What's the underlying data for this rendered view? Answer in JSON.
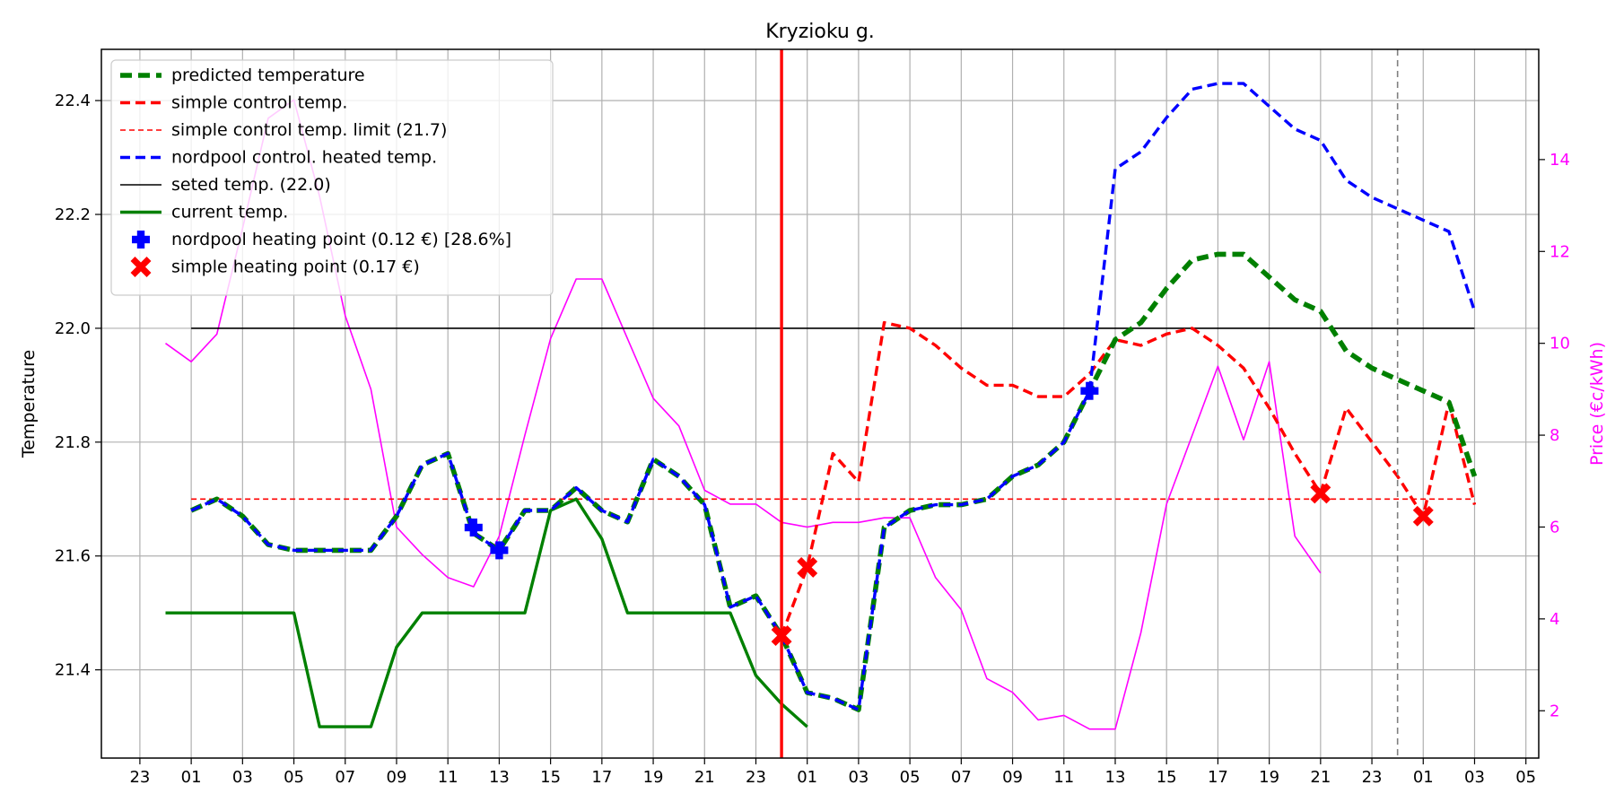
{
  "chart_data": {
    "type": "line",
    "title": "Kryzioku g.",
    "ylabel": "Temperature",
    "y2label": "Price (€c/kWh)",
    "ylim": [
      21.245,
      22.49
    ],
    "y2lim": [
      0.97,
      16.4
    ],
    "x_index_range": [
      -2.5,
      53.5
    ],
    "yticks": [
      21.4,
      21.6,
      21.8,
      22.0,
      22.2,
      22.4
    ],
    "ytick_labels": [
      "21.4",
      "21.6",
      "21.8",
      "22.0",
      "22.2",
      "22.4"
    ],
    "y2ticks": [
      2,
      4,
      6,
      8,
      10,
      12,
      14
    ],
    "y2tick_labels": [
      "2",
      "4",
      "6",
      "8",
      "10",
      "12",
      "14"
    ],
    "xtick_labels": [
      "23",
      "01",
      "03",
      "05",
      "07",
      "09",
      "11",
      "13",
      "15",
      "17",
      "19",
      "21",
      "23",
      "01",
      "03",
      "05",
      "07",
      "09",
      "11",
      "13",
      "15",
      "17",
      "19",
      "21",
      "23",
      "01",
      "03",
      "05"
    ],
    "xtick_start_index": -1,
    "xtick_step": 2,
    "grid": true,
    "legend_position": "top-left",
    "current_time_index": 24,
    "day_boundary_index": 48,
    "colors": {
      "predicted": "#008000",
      "simple": "#ff0000",
      "nordpool": "#0000ff",
      "seted": "#000000",
      "current": "#008000",
      "price": "#ff00ff",
      "now_line": "#ff0000",
      "boundary": "#808080",
      "grid": "#b0b0b0"
    },
    "legend": [
      {
        "label": "predicted temperature",
        "style": "predicted"
      },
      {
        "label": "simple control temp.",
        "style": "simple"
      },
      {
        "label": "simple control temp. limit (21.7)",
        "style": "simple_limit"
      },
      {
        "label": "nordpool control. heated temp.",
        "style": "nordpool"
      },
      {
        "label": "seted temp. (22.0)",
        "style": "seted"
      },
      {
        "label": "current temp.",
        "style": "current"
      },
      {
        "label": "nordpool heating point (0.12 €) [28.6%]",
        "style": "plus_marker"
      },
      {
        "label": "simple heating point (0.17 €)",
        "style": "x_marker"
      }
    ],
    "series": {
      "simple_limit": {
        "x_start": 1,
        "x_end": 51,
        "value": 21.7
      },
      "seted": {
        "x_start": 1,
        "x_end": 51,
        "value": 22.0
      },
      "nordpool": {
        "x_start": 1,
        "values": [
          21.68,
          21.7,
          21.67,
          21.62,
          21.61,
          21.61,
          21.61,
          21.61,
          21.67,
          21.76,
          21.78,
          21.64,
          21.61,
          21.68,
          21.68,
          21.72,
          21.68,
          21.66,
          21.77,
          21.74,
          21.69,
          21.51,
          21.53,
          21.46,
          21.36,
          21.35,
          21.33,
          21.65,
          21.68,
          21.69,
          21.69,
          21.7,
          21.74,
          21.76,
          21.8,
          21.89,
          22.28,
          22.31,
          22.37,
          22.42,
          22.43,
          22.43,
          22.39,
          22.35,
          22.33,
          22.26,
          22.23,
          22.21,
          22.19,
          22.17,
          22.03
        ]
      },
      "predicted": {
        "x_start": 1,
        "values": [
          21.68,
          21.7,
          21.67,
          21.62,
          21.61,
          21.61,
          21.61,
          21.61,
          21.67,
          21.76,
          21.78,
          21.64,
          21.61,
          21.68,
          21.68,
          21.72,
          21.68,
          21.66,
          21.77,
          21.74,
          21.69,
          21.51,
          21.53,
          21.46,
          21.36,
          21.35,
          21.33,
          21.65,
          21.68,
          21.69,
          21.69,
          21.7,
          21.74,
          21.76,
          21.8,
          21.89,
          21.98,
          22.01,
          22.07,
          22.12,
          22.13,
          22.13,
          22.09,
          22.05,
          22.03,
          21.96,
          21.93,
          21.91,
          21.89,
          21.87,
          21.74
        ]
      },
      "simple": {
        "x_start": 24,
        "values": [
          21.46,
          21.58,
          21.78,
          21.73,
          22.01,
          22.0,
          21.97,
          21.93,
          21.9,
          21.9,
          21.88,
          21.88,
          21.92,
          21.98,
          21.97,
          21.99,
          22.0,
          21.97,
          21.93,
          21.86,
          21.78,
          21.71,
          21.86,
          21.8,
          21.74,
          21.67,
          21.87,
          21.69
        ]
      },
      "current": {
        "x_start": 0,
        "values": [
          21.5,
          21.5,
          21.5,
          21.5,
          21.5,
          21.5,
          21.3,
          21.3,
          21.3,
          21.44,
          21.5,
          21.5,
          21.5,
          21.5,
          21.5,
          21.68,
          21.7,
          21.63,
          21.5,
          21.5,
          21.5,
          21.5,
          21.5,
          21.39,
          21.34,
          21.3
        ]
      },
      "price": {
        "x_start": 0,
        "values": [
          10.0,
          9.6,
          10.2,
          12.5,
          14.9,
          15.3,
          13.2,
          10.6,
          9.0,
          6.0,
          5.4,
          4.9,
          4.7,
          5.8,
          8.0,
          10.1,
          11.4,
          11.4,
          10.1,
          8.8,
          8.2,
          6.8,
          6.5,
          6.5,
          6.1,
          6.0,
          6.1,
          6.1,
          6.2,
          6.2,
          4.9,
          4.2,
          2.7,
          2.4,
          1.8,
          1.9,
          1.6,
          1.6,
          3.7,
          6.5,
          8.0,
          9.5,
          7.9,
          9.6,
          5.8,
          5.0
        ]
      },
      "nordpool_points": [
        {
          "x": 12,
          "y": 21.65
        },
        {
          "x": 13,
          "y": 21.61
        },
        {
          "x": 36,
          "y": 21.89
        }
      ],
      "simple_points": [
        {
          "x": 24,
          "y": 21.46
        },
        {
          "x": 25,
          "y": 21.58
        },
        {
          "x": 45,
          "y": 21.71
        },
        {
          "x": 49,
          "y": 21.67
        }
      ]
    }
  }
}
